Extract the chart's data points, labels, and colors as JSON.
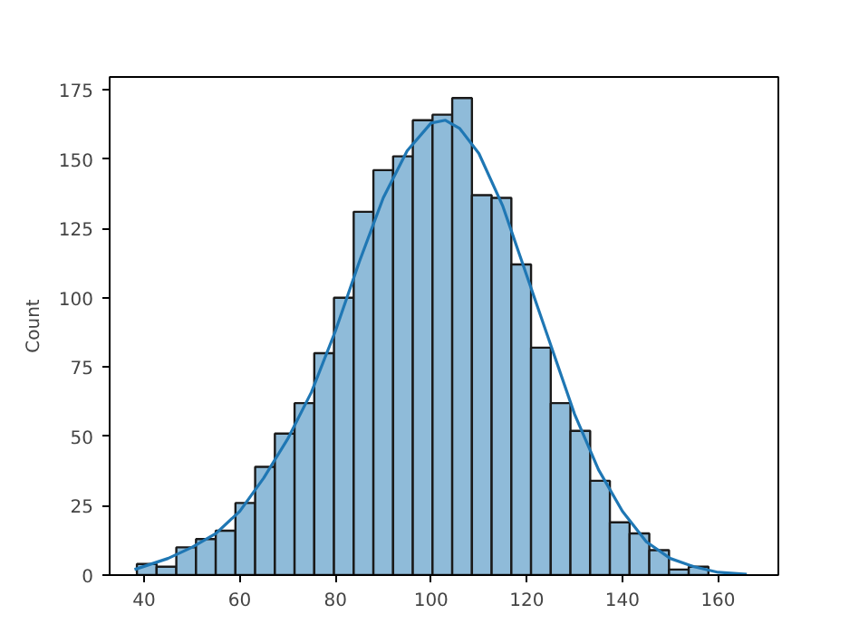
{
  "chart_data": {
    "type": "histogram",
    "ylabel": "Count",
    "xlim": [
      32.8,
      172.6
    ],
    "ylim": [
      0,
      179.6
    ],
    "xticks": [
      40,
      60,
      80,
      100,
      120,
      140,
      160
    ],
    "yticks": [
      0,
      25,
      50,
      75,
      100,
      125,
      150,
      175
    ],
    "grid": false,
    "series": [
      {
        "color": "#8fbbd9",
        "bins": [
          38.5,
          42.62,
          46.74,
          50.86,
          54.98,
          59.1,
          63.22,
          67.34,
          71.46,
          75.58,
          79.7,
          83.82,
          87.94,
          92.06,
          96.18,
          100.3,
          104.42,
          108.54,
          112.66,
          116.78,
          120.9,
          125.02,
          129.14,
          133.26,
          137.38,
          141.5,
          145.62,
          149.74,
          153.86,
          157.98
        ],
        "values": [
          4,
          3,
          10,
          13,
          16,
          26,
          39,
          51,
          62,
          80,
          100,
          131,
          146,
          151,
          164,
          166,
          172,
          137,
          136,
          112,
          82,
          62,
          52,
          34,
          19,
          15,
          9,
          2,
          3
        ]
      },
      {
        "type": "line",
        "color": "#1f77b4",
        "x": [
          38,
          45,
          50,
          55,
          60,
          65,
          70,
          75,
          80,
          85,
          90,
          95,
          100,
          103,
          106,
          110,
          115,
          120,
          125,
          130,
          135,
          140,
          145,
          150,
          155,
          160,
          166
        ],
        "values": [
          2,
          6,
          10,
          15,
          23,
          35,
          49,
          66,
          88,
          113,
          136,
          153,
          163,
          164,
          161,
          152,
          133,
          108,
          83,
          58,
          38,
          23,
          12,
          6,
          3,
          1,
          0.3
        ]
      }
    ]
  }
}
